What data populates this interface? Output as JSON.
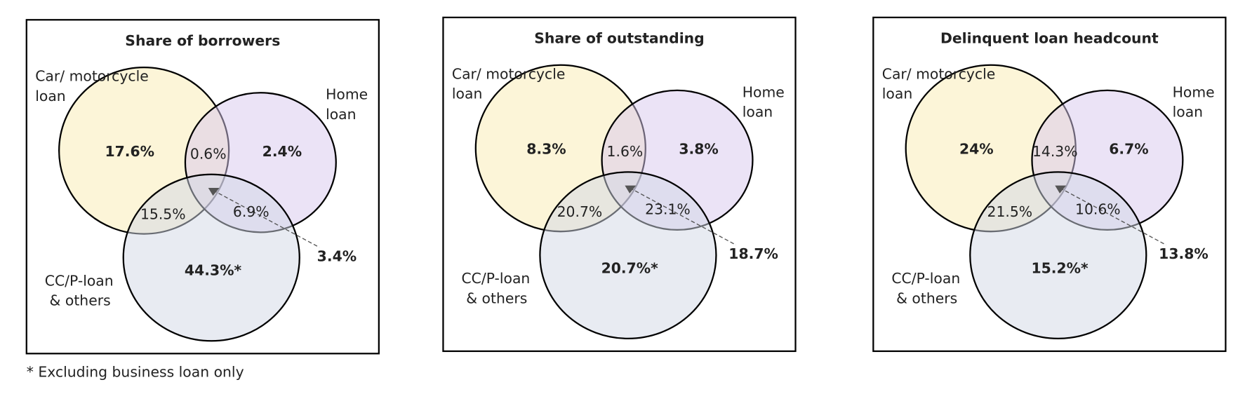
{
  "panels": [
    {
      "title": "Share of borrowers",
      "car_label": [
        "Car/ motorcycle",
        "loan"
      ],
      "home_label": [
        "Home",
        "loan"
      ],
      "cc_label": [
        "CC/P-loan",
        "& others"
      ],
      "regions": {
        "car_only": "17.6%",
        "home_only": "2.4%",
        "cc_only": "44.3%*",
        "car_home": "0.6%",
        "car_cc": "15.5%",
        "home_cc": "6.9%",
        "all_three": "3.4%"
      }
    },
    {
      "title": "Share of outstanding",
      "car_label": [
        "Car/ motorcycle",
        "loan"
      ],
      "home_label": [
        "Home",
        "loan"
      ],
      "cc_label": [
        "CC/P-loan",
        "& others"
      ],
      "regions": {
        "car_only": "8.3%",
        "home_only": "3.8%",
        "cc_only": "20.7%*",
        "car_home": "1.6%",
        "car_cc": "20.7%",
        "home_cc": "23.1%",
        "all_three": "18.7%"
      }
    },
    {
      "title": "Delinquent loan headcount",
      "car_label": [
        "Car/ motorcycle",
        "loan"
      ],
      "home_label": [
        "Home",
        "loan"
      ],
      "cc_label": [
        "CC/P-loan",
        "& others"
      ],
      "regions": {
        "car_only": "24%",
        "home_only": "6.7%",
        "cc_only": "15.2%*",
        "car_home": "14.3%",
        "car_cc": "21.5%",
        "home_cc": "10.6%",
        "all_three": "13.8%"
      }
    }
  ],
  "footnote": "* Excluding business loan only"
}
